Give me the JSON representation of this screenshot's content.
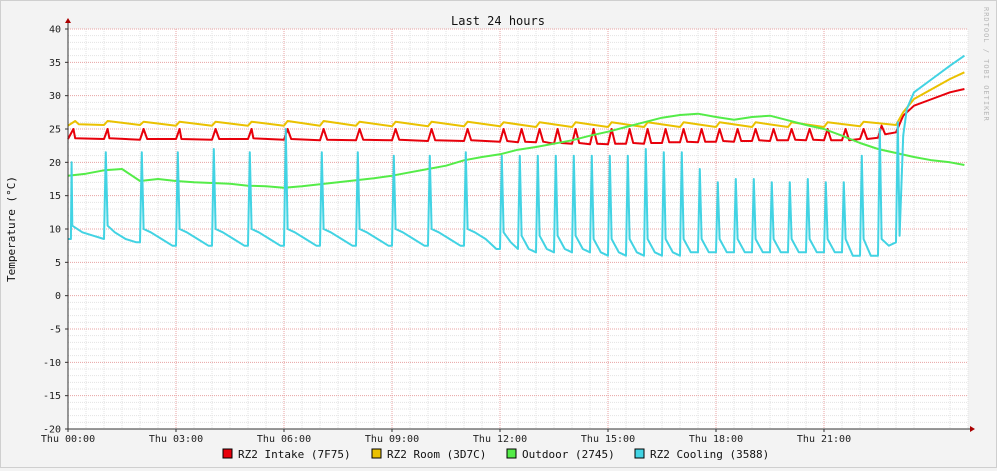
{
  "chart_data": {
    "type": "line",
    "title": "Last 24 hours",
    "ylabel": "Temperature (°C)",
    "watermark": "RRDTOOL / TOBI OETIKER",
    "ylim": [
      -20,
      40
    ],
    "yticks": [
      -20,
      -15,
      -10,
      -5,
      0,
      5,
      10,
      15,
      20,
      25,
      30,
      35,
      40
    ],
    "xlim_hours": [
      0,
      25
    ],
    "xticks": [
      {
        "hour": 0,
        "label": "Thu 00:00"
      },
      {
        "hour": 3,
        "label": "Thu 03:00"
      },
      {
        "hour": 6,
        "label": "Thu 06:00"
      },
      {
        "hour": 9,
        "label": "Thu 09:00"
      },
      {
        "hour": 12,
        "label": "Thu 12:00"
      },
      {
        "hour": 15,
        "label": "Thu 15:00"
      },
      {
        "hour": 18,
        "label": "Thu 18:00"
      },
      {
        "hour": 21,
        "label": "Thu 21:00"
      }
    ],
    "grid": true,
    "legend_position": "bottom",
    "series": [
      {
        "name": "RZ2 Intake (7F75)",
        "color": "#e8000b",
        "x": [
          0,
          0.15,
          0.2,
          1.0,
          1.1,
          1.15,
          2.0,
          2.1,
          2.2,
          3.0,
          3.1,
          3.15,
          4.0,
          4.1,
          4.2,
          5.0,
          5.1,
          5.15,
          6.0,
          6.1,
          6.2,
          7.0,
          7.1,
          7.2,
          8.0,
          8.1,
          8.2,
          9.0,
          9.1,
          9.2,
          10.0,
          10.1,
          10.2,
          11.0,
          11.1,
          11.2,
          12.0,
          12.1,
          12.2,
          12.5,
          12.6,
          12.7,
          13.0,
          13.1,
          13.2,
          13.5,
          13.6,
          13.7,
          14.0,
          14.1,
          14.2,
          14.5,
          14.6,
          14.7,
          15.0,
          15.1,
          15.2,
          15.5,
          15.6,
          15.7,
          16.0,
          16.1,
          16.2,
          16.5,
          16.6,
          16.7,
          17.0,
          17.1,
          17.2,
          17.5,
          17.6,
          17.7,
          18.0,
          18.1,
          18.2,
          18.5,
          18.6,
          18.7,
          19.0,
          19.1,
          19.2,
          19.5,
          19.6,
          19.7,
          20.0,
          20.1,
          20.2,
          20.5,
          20.6,
          20.7,
          21.0,
          21.1,
          21.2,
          21.5,
          21.6,
          21.7,
          22.0,
          22.1,
          22.2,
          22.5,
          22.6,
          22.7,
          23.0,
          23.2,
          23.5,
          24.0,
          24.5,
          24.9
        ],
        "y": [
          23.5,
          25,
          23.6,
          23.5,
          25,
          23.6,
          23.4,
          25,
          23.5,
          23.5,
          25,
          23.5,
          23.4,
          25,
          23.5,
          23.5,
          25,
          23.6,
          23.4,
          25,
          23.5,
          23.3,
          25,
          23.4,
          23.3,
          25,
          23.4,
          23.3,
          25,
          23.4,
          23.2,
          25,
          23.3,
          23.2,
          25,
          23.3,
          23.1,
          25,
          23.2,
          23.0,
          25,
          23.1,
          23.0,
          25,
          23.1,
          22.8,
          25,
          22.9,
          22.8,
          25,
          22.9,
          22.7,
          25,
          22.8,
          22.7,
          25,
          22.8,
          22.8,
          25,
          22.9,
          22.8,
          25,
          22.9,
          22.9,
          25,
          23.0,
          23.0,
          25,
          23.1,
          23.0,
          25,
          23.1,
          23.1,
          25,
          23.2,
          23.1,
          25,
          23.2,
          23.2,
          25,
          23.3,
          23.2,
          25,
          23.3,
          23.3,
          25,
          23.4,
          23.3,
          25,
          23.4,
          23.3,
          25,
          23.3,
          23.3,
          25,
          23.3,
          23.5,
          25,
          23.5,
          23.7,
          25.5,
          24.2,
          24.5,
          27,
          28.5,
          29.5,
          30.5,
          31
        ]
      },
      {
        "name": "RZ2 Room (3D7C)",
        "color": "#eac100",
        "x": [
          0,
          0.2,
          0.3,
          1.0,
          1.1,
          2.0,
          2.1,
          3.0,
          3.1,
          4.0,
          4.1,
          5.0,
          5.1,
          6.0,
          6.1,
          7.0,
          7.1,
          8.0,
          8.1,
          9.0,
          9.1,
          10.0,
          10.1,
          11.0,
          11.1,
          12.0,
          12.1,
          13.0,
          13.1,
          14.0,
          14.1,
          15.0,
          15.1,
          16.0,
          16.1,
          17.0,
          17.1,
          18.0,
          18.1,
          19.0,
          19.1,
          20.0,
          20.1,
          21.0,
          21.1,
          22.0,
          22.1,
          23.0,
          23.2,
          23.5,
          24.0,
          24.5,
          24.9
        ],
        "y": [
          25.5,
          26.2,
          25.7,
          25.6,
          26.2,
          25.6,
          26.1,
          25.5,
          26.1,
          25.5,
          26.1,
          25.5,
          26.1,
          25.5,
          26.2,
          25.5,
          26.2,
          25.5,
          26.1,
          25.4,
          26.1,
          25.4,
          26.1,
          25.4,
          26.1,
          25.4,
          26.0,
          25.3,
          26.0,
          25.3,
          26.0,
          25.3,
          26.0,
          25.3,
          26.0,
          25.3,
          26.0,
          25.3,
          26.0,
          25.3,
          26.0,
          25.3,
          26.0,
          25.3,
          26.0,
          25.4,
          26.1,
          25.6,
          27.5,
          29.5,
          31,
          32.5,
          33.5
        ]
      },
      {
        "name": "Outdoor (2745)",
        "color": "#54ec48",
        "x": [
          0,
          0.5,
          1.0,
          1.5,
          2.0,
          2.5,
          3.0,
          3.5,
          4.0,
          4.5,
          5.0,
          5.5,
          6.0,
          6.5,
          7.0,
          7.5,
          8.0,
          8.5,
          9.0,
          9.5,
          10.0,
          10.5,
          11.0,
          11.5,
          12.0,
          12.5,
          13.0,
          13.5,
          14.0,
          14.5,
          15.0,
          15.5,
          16.0,
          16.5,
          17.0,
          17.5,
          18.0,
          18.5,
          19.0,
          19.5,
          20.0,
          20.5,
          21.0,
          21.5,
          22.0,
          22.5,
          23.0,
          23.5,
          24.0,
          24.5,
          24.9
        ],
        "y": [
          18,
          18.3,
          18.8,
          19,
          17.2,
          17.5,
          17.2,
          17,
          16.9,
          16.8,
          16.5,
          16.4,
          16.2,
          16.4,
          16.7,
          17.0,
          17.3,
          17.6,
          18.0,
          18.5,
          19.0,
          19.5,
          20.3,
          20.8,
          21.2,
          21.9,
          22.3,
          22.8,
          23.3,
          24.0,
          24.6,
          25.3,
          26.0,
          26.7,
          27.1,
          27.3,
          26.8,
          26.4,
          26.8,
          27.0,
          26.3,
          25.6,
          25.0,
          24.0,
          22.9,
          22.0,
          21.4,
          20.8,
          20.3,
          20.0,
          19.6
        ]
      },
      {
        "name": "RZ2 Cooling (3588)",
        "color": "#42d3e3",
        "x": [
          0,
          0.08,
          0.1,
          0.12,
          0.4,
          0.7,
          1.0,
          1.05,
          1.1,
          1.3,
          1.6,
          1.9,
          2.0,
          2.05,
          2.1,
          2.3,
          2.6,
          2.9,
          3.0,
          3.05,
          3.1,
          3.3,
          3.6,
          3.9,
          4.0,
          4.05,
          4.1,
          4.3,
          4.6,
          4.9,
          5.0,
          5.05,
          5.1,
          5.3,
          5.6,
          5.9,
          6.0,
          6.05,
          6.1,
          6.3,
          6.6,
          6.9,
          7.0,
          7.05,
          7.1,
          7.3,
          7.6,
          7.9,
          8.0,
          8.05,
          8.1,
          8.3,
          8.6,
          8.9,
          9.0,
          9.05,
          9.1,
          9.3,
          9.6,
          9.9,
          10.0,
          10.05,
          10.1,
          10.3,
          10.6,
          10.9,
          11.0,
          11.05,
          11.1,
          11.3,
          11.6,
          11.9,
          12.0,
          12.05,
          12.1,
          12.3,
          12.5,
          12.55,
          12.6,
          12.8,
          13.0,
          13.05,
          13.1,
          13.3,
          13.5,
          13.55,
          13.6,
          13.8,
          14.0,
          14.05,
          14.1,
          14.3,
          14.5,
          14.55,
          14.6,
          14.8,
          15.0,
          15.05,
          15.1,
          15.3,
          15.5,
          15.55,
          15.6,
          15.8,
          16.0,
          16.05,
          16.1,
          16.3,
          16.5,
          16.55,
          16.6,
          16.8,
          17.0,
          17.05,
          17.1,
          17.3,
          17.5,
          17.55,
          17.6,
          17.8,
          18.0,
          18.05,
          18.1,
          18.3,
          18.5,
          18.55,
          18.6,
          18.8,
          19.0,
          19.05,
          19.1,
          19.3,
          19.5,
          19.55,
          19.6,
          19.8,
          20.0,
          20.05,
          20.1,
          20.3,
          20.5,
          20.55,
          20.6,
          20.8,
          21.0,
          21.05,
          21.1,
          21.3,
          21.5,
          21.55,
          21.6,
          21.8,
          22.0,
          22.05,
          22.1,
          22.3,
          22.5,
          22.55,
          22.6,
          22.8,
          23.0,
          23.05,
          23.1,
          23.2,
          23.3,
          23.5,
          24.0,
          24.5,
          24.9
        ],
        "y": [
          8.5,
          8.5,
          20,
          10.5,
          9.5,
          9.0,
          8.5,
          21.5,
          10.5,
          9.5,
          8.5,
          8.0,
          8.0,
          21.5,
          10.0,
          9.5,
          8.5,
          7.5,
          7.5,
          21.5,
          10.0,
          9.5,
          8.5,
          7.5,
          7.5,
          22,
          10.0,
          9.5,
          8.5,
          7.5,
          7.5,
          21.5,
          10.0,
          9.5,
          8.5,
          7.5,
          7.5,
          25,
          10.0,
          9.5,
          8.5,
          7.5,
          7.5,
          21.5,
          10.0,
          9.5,
          8.5,
          7.5,
          7.5,
          21.5,
          10.0,
          9.5,
          8.5,
          7.5,
          7.5,
          21.0,
          10.0,
          9.5,
          8.5,
          7.5,
          7.5,
          21.0,
          10.0,
          9.5,
          8.5,
          7.5,
          7.5,
          21.5,
          10.0,
          9.5,
          8.5,
          7.0,
          7.0,
          21.0,
          9.5,
          8.0,
          7.0,
          21.0,
          9.0,
          7.0,
          6.5,
          21.0,
          9.0,
          7.0,
          6.5,
          21.0,
          9.0,
          7.0,
          6.5,
          21.0,
          9.0,
          7.0,
          6.5,
          21.0,
          8.5,
          6.5,
          6.0,
          21.0,
          8.5,
          6.5,
          6.0,
          21.0,
          8.5,
          6.5,
          6.0,
          22.0,
          8.5,
          6.5,
          6.0,
          21.5,
          8.5,
          6.5,
          6.0,
          21.5,
          8.5,
          6.5,
          6.5,
          19.0,
          8.5,
          6.5,
          6.5,
          17.0,
          8.5,
          6.5,
          6.5,
          17.5,
          8.5,
          6.5,
          6.5,
          17.5,
          8.5,
          6.5,
          6.5,
          17.0,
          8.5,
          6.5,
          6.5,
          17.0,
          8.5,
          6.5,
          6.5,
          17.5,
          8.5,
          6.5,
          6.5,
          17.0,
          8.5,
          6.5,
          6.5,
          17.0,
          8.5,
          6.0,
          6.0,
          21.0,
          8.5,
          6.0,
          6.0,
          25.0,
          8.5,
          7.5,
          8.0,
          26.0,
          9.0,
          24.0,
          28.0,
          30.5,
          32.5,
          34.5,
          36
        ]
      }
    ]
  }
}
